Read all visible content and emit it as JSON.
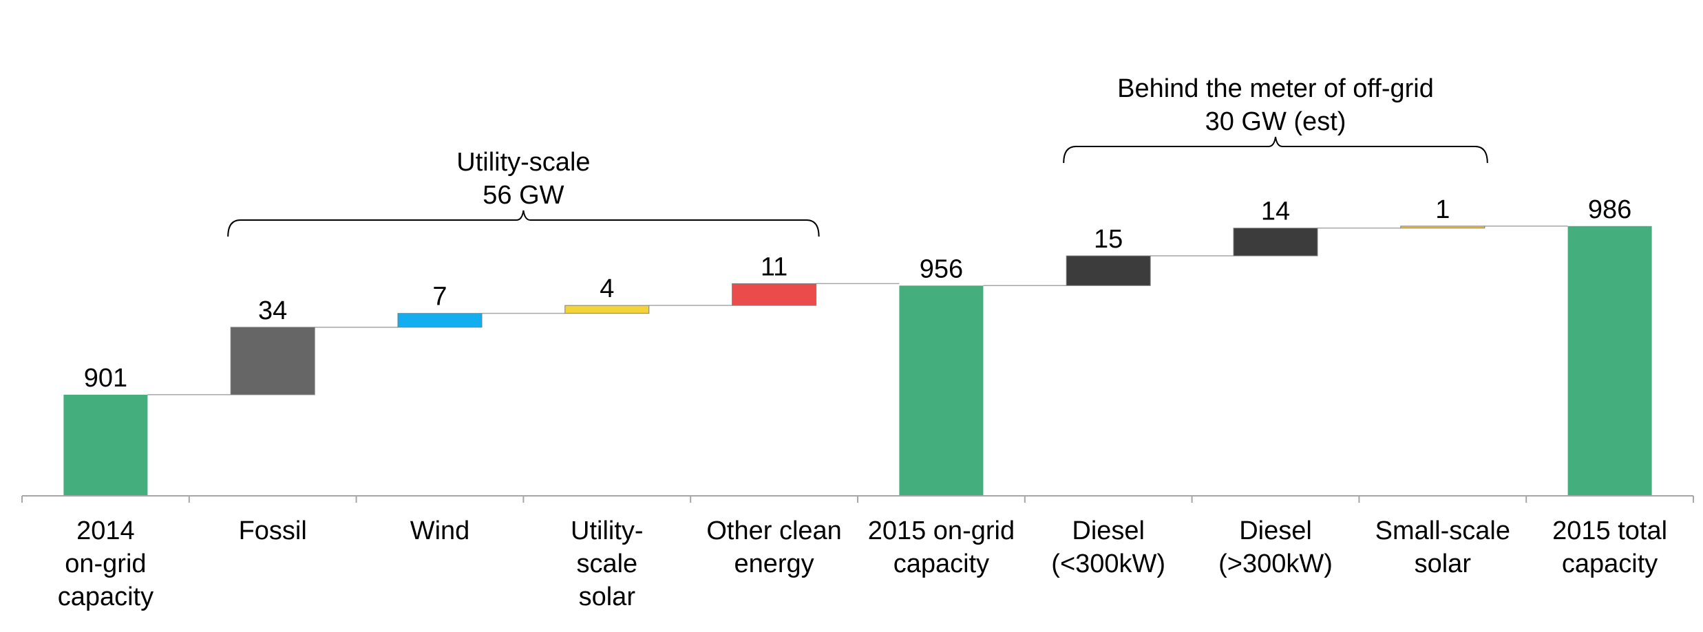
{
  "chart_data": {
    "type": "bar",
    "subtype": "waterfall",
    "categories": [
      [
        "2014",
        "on-grid",
        "capacity"
      ],
      [
        "Fossil"
      ],
      [
        "Wind"
      ],
      [
        "Utility-",
        "scale",
        "solar"
      ],
      [
        "Other clean",
        "energy"
      ],
      [
        "2015 on-grid",
        "capacity"
      ],
      [
        "Diesel",
        "(<300kW)"
      ],
      [
        "Diesel",
        "(>300kW)"
      ],
      [
        "Small-scale",
        "solar"
      ],
      [
        "2015 total",
        "capacity"
      ]
    ],
    "values": [
      901,
      34,
      7,
      4,
      11,
      956,
      15,
      14,
      1,
      986
    ],
    "value_labels": [
      "901",
      "34",
      "7",
      "4",
      "11",
      "956",
      "15",
      "14",
      "1",
      "986"
    ],
    "bar_kind": [
      "total",
      "step",
      "step",
      "step",
      "step",
      "total",
      "step",
      "step",
      "step",
      "total"
    ],
    "colors": [
      "#44AE7C",
      "#666666",
      "#12AEEF",
      "#F2D43A",
      "#EC4B4B",
      "#44AE7C",
      "#3C3C3C",
      "#3C3C3C",
      "#F2C24A",
      "#44AE7C"
    ],
    "ylim": [
      850,
      1005
    ],
    "grid": false,
    "legend": "none",
    "annotations": [
      {
        "from_index": 1,
        "to_index": 4,
        "lines": [
          "Utility-scale",
          "56 GW"
        ]
      },
      {
        "from_index": 6,
        "to_index": 8,
        "lines": [
          "Behind the meter of off-grid",
          "30 GW (est)"
        ]
      }
    ],
    "title": "",
    "xlabel": "",
    "ylabel": ""
  }
}
